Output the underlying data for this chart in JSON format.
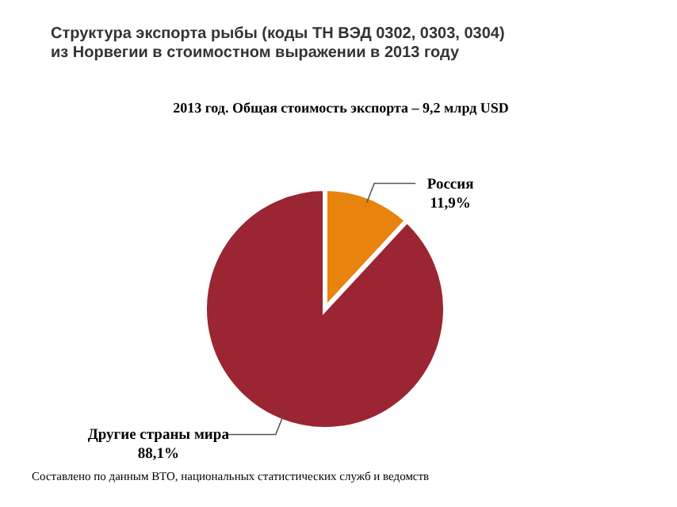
{
  "chart_data": {
    "type": "pie",
    "title": "Структура экспорта рыбы (коды ТН ВЭД 0302, 0303, 0304) из Норвегии в стоимостном выражении в 2013 году",
    "subtitle": "2013 год. Общая стоимость экспорта – 9,2 млрд USD",
    "categories": [
      "Россия",
      "Другие страны мира"
    ],
    "values": [
      11.9,
      88.1
    ],
    "value_labels": [
      "11,9%",
      "88,1%"
    ],
    "colors": [
      "#e8830e",
      "#9b2532"
    ],
    "annotations": [
      "Составлено по данным ВТО, национальных статистических служб и ведомств"
    ]
  }
}
